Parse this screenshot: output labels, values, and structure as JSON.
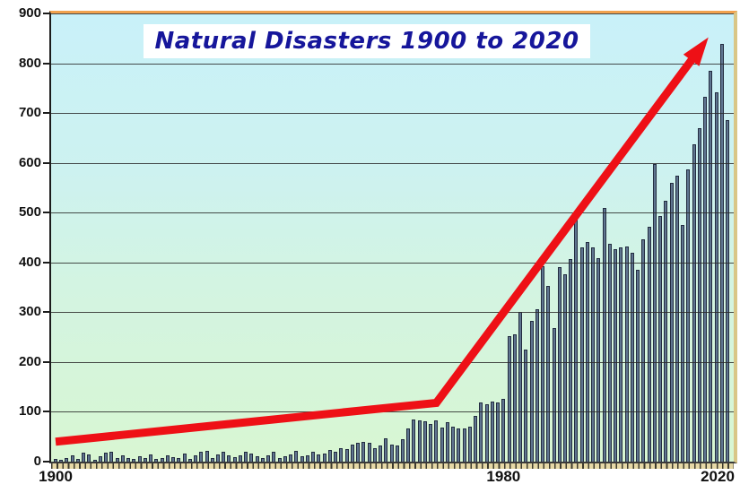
{
  "title": "Natural Disasters 1900 to 2020",
  "colors": {
    "title_text": "#16169b",
    "title_background": "#ffffff",
    "bar_fill": "#5f7590",
    "bar_outline": "#232c40",
    "arrow": "#ee1016",
    "plot_background_top": "#c9f1f9",
    "plot_background_bottom": "#d8f6d2",
    "frame_top": "#f2a24e",
    "frame_right": "#d9c687",
    "gridline": "#2b2b2b"
  },
  "y_axis": {
    "ticks": [
      900,
      800,
      700,
      600,
      500,
      400,
      300,
      200,
      100,
      0
    ]
  },
  "x_axis": {
    "labels": [
      {
        "text": "1900",
        "year": 1900
      },
      {
        "text": "1980",
        "year": 1980
      },
      {
        "text": "2020",
        "year": 2020
      }
    ]
  },
  "chart_data": {
    "type": "bar",
    "title": "Natural Disasters 1900 to 2020",
    "xlabel": "",
    "ylabel": "",
    "ylim": [
      0,
      900
    ],
    "grid": "horizontal",
    "x_start_year": 1900,
    "x_end_year": 2020,
    "values": [
      5,
      4,
      8,
      12,
      5,
      18,
      14,
      4,
      11,
      18,
      19,
      8,
      13,
      7,
      5,
      10,
      8,
      15,
      6,
      8,
      13,
      9,
      8,
      17,
      6,
      13,
      19,
      21,
      8,
      15,
      19,
      12,
      9,
      13,
      19,
      17,
      10,
      8,
      12,
      19,
      8,
      10,
      15,
      21,
      10,
      12,
      19,
      15,
      17,
      23,
      19,
      27,
      25,
      34,
      37,
      40,
      37,
      27,
      33,
      46,
      35,
      33,
      45,
      66,
      84,
      83,
      81,
      75,
      83,
      69,
      80,
      70,
      67,
      66,
      70,
      92,
      118,
      115,
      120,
      118,
      126,
      252,
      256,
      300,
      225,
      283,
      306,
      393,
      352,
      269,
      390,
      377,
      406,
      490,
      431,
      441,
      430,
      408,
      509,
      438,
      426,
      430,
      432,
      420,
      385,
      447,
      472,
      597,
      494,
      523,
      560,
      574,
      476,
      586,
      637,
      670,
      732,
      784,
      742,
      838,
      685
    ],
    "annotation": {
      "type": "trend-arrow",
      "color": "#ee1016",
      "points": [
        [
          1900,
          40
        ],
        [
          1968,
          118
        ],
        [
          2016.6,
          852
        ]
      ]
    }
  }
}
